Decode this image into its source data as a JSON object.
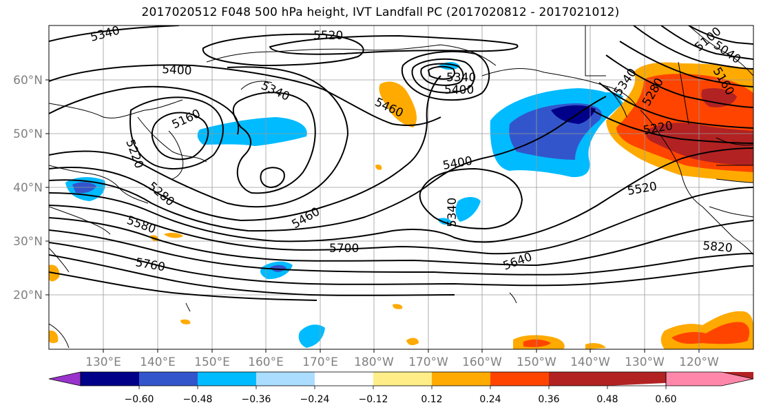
{
  "title": "2017020512 F048 500 hPa height, IVT Landfall PC (2017020812 - 2017021012)",
  "map": {
    "lat_labels": [
      "60°N",
      "50°N",
      "40°N",
      "30°N",
      "20°N"
    ],
    "lon_labels": [
      "130°E",
      "140°E",
      "150°E",
      "160°E",
      "170°E",
      "180°W",
      "170°W",
      "160°W",
      "150°W",
      "140°W",
      "130°W",
      "120°W"
    ],
    "contour_labels": [
      "5340",
      "5520",
      "5400",
      "5340",
      "5160",
      "5220",
      "5460",
      "5280",
      "5580",
      "5760",
      "5460",
      "5700",
      "5400",
      "5340",
      "5640",
      "5520",
      "5820",
      "5280",
      "5220",
      "5040",
      "5100",
      "5160",
      "5340",
      "5400"
    ]
  },
  "colorbar": {
    "colors": [
      "#9933cc",
      "#000088",
      "#3355cc",
      "#00bbff",
      "#aaddff",
      "#ffffff",
      "#ffee88",
      "#ffaa00",
      "#ff4400",
      "#b22222",
      "#ff88aa"
    ],
    "tick_labels": [
      "−0.60",
      "−0.48",
      "−0.36",
      "−0.24",
      "−0.12",
      "0.12",
      "0.24",
      "0.36",
      "0.48",
      "0.60"
    ]
  }
}
